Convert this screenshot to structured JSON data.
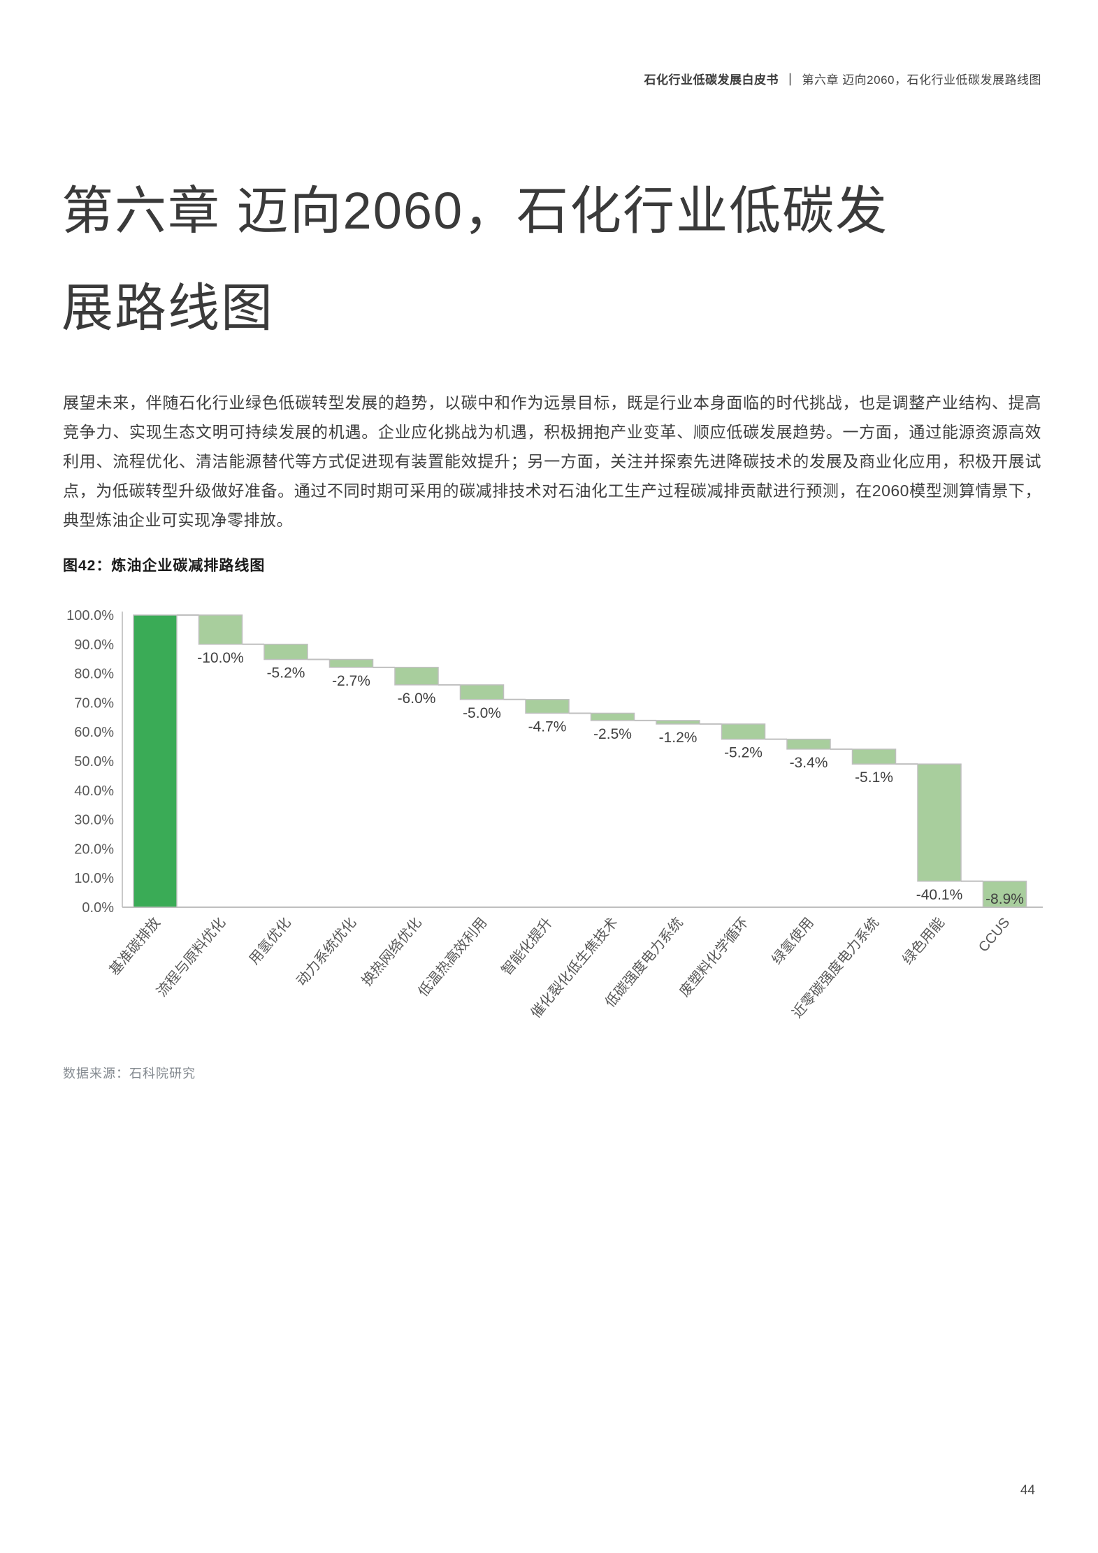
{
  "header": {
    "book_title": "石化行业低碳发展白皮书",
    "separator": "｜",
    "chapter": "第六章 迈向2060，石化行业低碳发展路线图"
  },
  "title": {
    "line1": "第六章 迈向2060，石化行业低碳发",
    "line2": "展路线图"
  },
  "body_paragraph": "展望未来，伴随石化行业绿色低碳转型发展的趋势，以碳中和作为远景目标，既是行业本身面临的时代挑战，也是调整产业结构、提高竞争力、实现生态文明可持续发展的机遇。企业应化挑战为机遇，积极拥抱产业变革、顺应低碳发展趋势。一方面，通过能源资源高效利用、流程优化、清洁能源替代等方式促进现有装置能效提升；另一方面，关注并探索先进降碳技术的发展及商业化应用，积极开展试点，为低碳转型升级做好准备。通过不同时期可采用的碳减排技术对石油化工生产过程碳减排贡献进行预测，在2060模型测算情景下，典型炼油企业可实现净零排放。",
  "figure_caption": "图42：炼油企业碳减排路线图",
  "source": "数据来源：石科院研究",
  "page_number": "44",
  "chart_data": {
    "type": "bar",
    "subtype": "waterfall",
    "title": "图42：炼油企业碳减排路线图",
    "categories": [
      "基准碳排放",
      "流程与原料优化",
      "用氢优化",
      "动力系统优化",
      "换热网络优化",
      "低温热高效利用",
      "智能化提升",
      "催化裂化低生焦技术",
      "低碳强度电力系统",
      "废塑料化学循环",
      "绿氢使用",
      "近零碳强度电力系统",
      "绿色用能",
      "CCUS"
    ],
    "values": [
      100,
      -10.0,
      -5.2,
      -2.7,
      -6.0,
      -5.0,
      -4.7,
      -2.5,
      -1.2,
      -5.2,
      -3.4,
      -5.1,
      -40.1,
      -8.9
    ],
    "labels": [
      "",
      "-10.0%",
      "-5.2%",
      "-2.7%",
      "-6.0%",
      "-5.0%",
      "-4.7%",
      "-2.5%",
      "-1.2%",
      "-5.2%",
      "-3.4%",
      "-5.1%",
      "-40.1%",
      "-8.9%"
    ],
    "y_ticks": [
      "100.0%",
      "90.0%",
      "80.0%",
      "70.0%",
      "60.0%",
      "50.0%",
      "40.0%",
      "30.0%",
      "20.0%",
      "10.0%",
      "0.0%"
    ],
    "ylim": [
      0,
      100
    ],
    "grid": "off",
    "legend": "none",
    "colors": {
      "base_bar": "#3aab56",
      "delta_bar": "#a8ce9d",
      "connector": "#bfbfbf",
      "label_text": "#404040",
      "axis_text": "#595959"
    }
  }
}
